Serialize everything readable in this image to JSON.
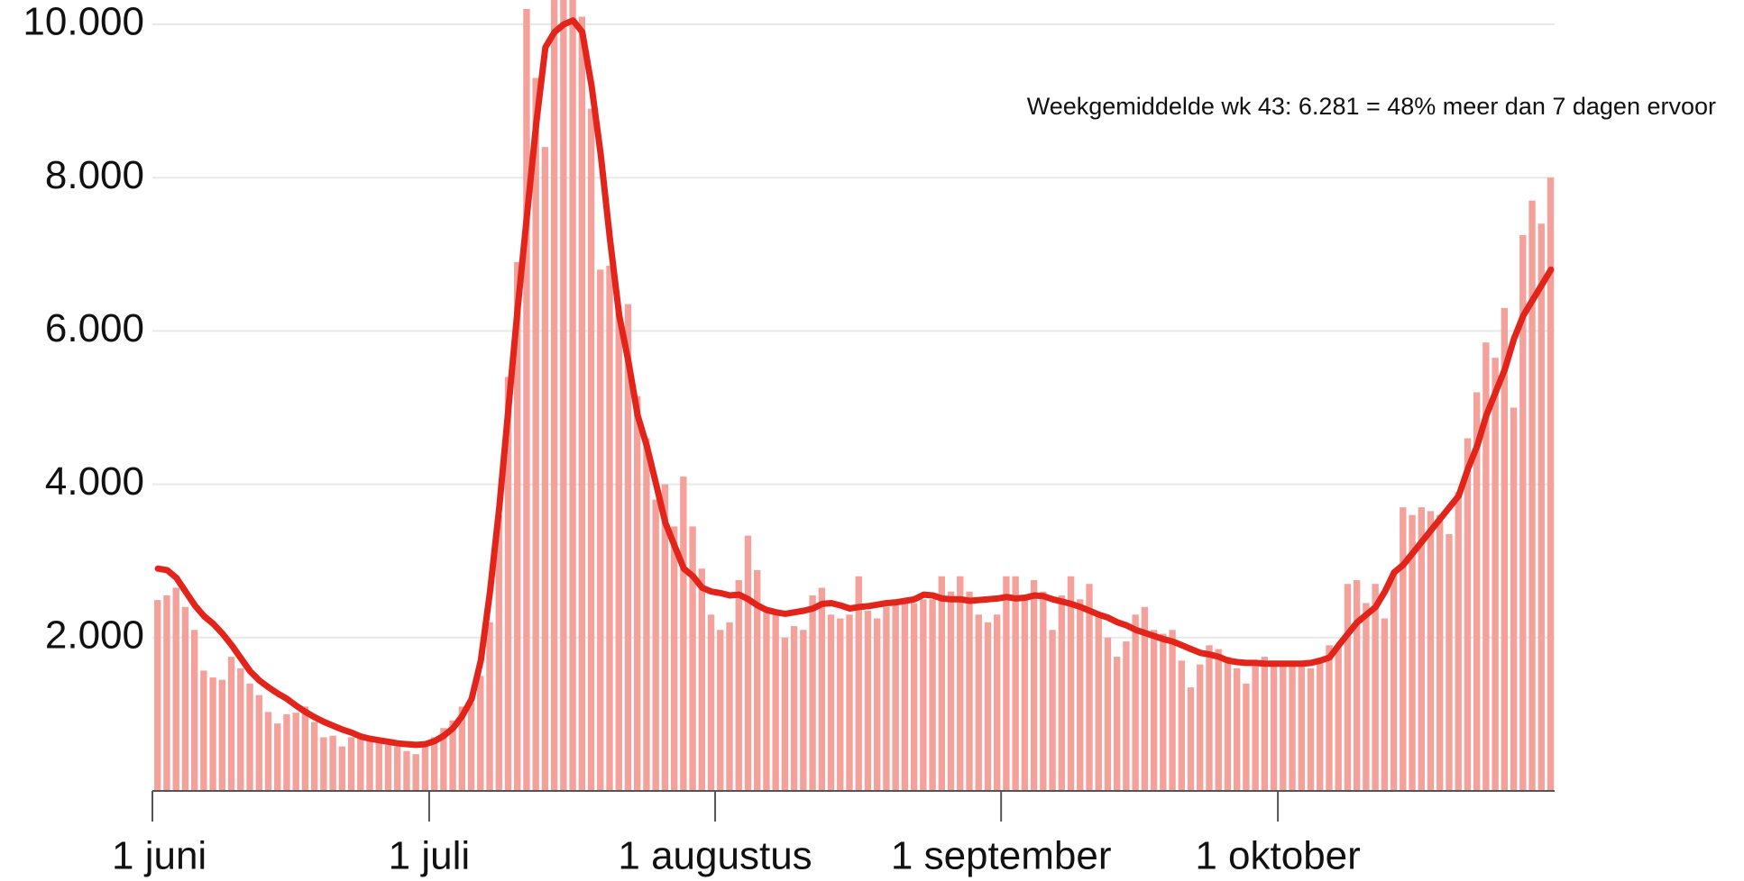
{
  "chart_data": {
    "type": "bar",
    "annotation": "Weekgemiddelde wk 43: 6.281 = 48% meer dan 7 dagen ervoor",
    "categories": [
      "1 juni",
      null,
      null,
      null,
      null,
      null,
      null,
      null,
      null,
      null,
      null,
      null,
      null,
      null,
      null,
      null,
      null,
      null,
      null,
      null,
      null,
      null,
      null,
      null,
      null,
      null,
      null,
      null,
      null,
      null,
      "1 juli",
      null,
      null,
      null,
      null,
      null,
      null,
      null,
      null,
      null,
      null,
      null,
      null,
      null,
      null,
      null,
      null,
      null,
      null,
      null,
      null,
      null,
      null,
      null,
      null,
      null,
      null,
      null,
      null,
      null,
      null,
      "1 augustus",
      null,
      null,
      null,
      null,
      null,
      null,
      null,
      null,
      null,
      null,
      null,
      null,
      null,
      null,
      null,
      null,
      null,
      null,
      null,
      null,
      null,
      null,
      null,
      null,
      null,
      null,
      null,
      null,
      null,
      null,
      "1 september",
      null,
      null,
      null,
      null,
      null,
      null,
      null,
      null,
      null,
      null,
      null,
      null,
      null,
      null,
      null,
      null,
      null,
      null,
      null,
      null,
      null,
      null,
      null,
      null,
      null,
      null,
      null,
      null,
      null,
      "1 oktober",
      null,
      null,
      null,
      null,
      null,
      null,
      null,
      null,
      null,
      null,
      null,
      null,
      null,
      null,
      null,
      null,
      null,
      null,
      null,
      null,
      null,
      null,
      null,
      null,
      null,
      null,
      null,
      null,
      null
    ],
    "series": [
      {
        "type": "bar",
        "color": "#f5a19b",
        "values": [
          2490,
          2550,
          2650,
          2400,
          2100,
          1570,
          1480,
          1450,
          1750,
          1600,
          1400,
          1250,
          1030,
          880,
          1000,
          1020,
          1100,
          900,
          700,
          720,
          580,
          700,
          700,
          700,
          650,
          600,
          580,
          520,
          480,
          600,
          700,
          820,
          920,
          1100,
          1150,
          1500,
          2200,
          3600,
          5400,
          6900,
          10200,
          9300,
          8400,
          10500,
          10800,
          10500,
          10100,
          8900,
          6800,
          6850,
          6250,
          6350,
          5150,
          4600,
          3800,
          4000,
          3450,
          4100,
          3450,
          2900,
          2300,
          2100,
          2200,
          2750,
          3330,
          2880,
          2400,
          2300,
          2000,
          2150,
          2100,
          2550,
          2650,
          2300,
          2250,
          2300,
          2800,
          2350,
          2250,
          2400,
          2500,
          2500,
          2450,
          2500,
          2500,
          2800,
          2600,
          2800,
          2600,
          2300,
          2200,
          2300,
          2800,
          2800,
          2500,
          2750,
          2600,
          2100,
          2550,
          2800,
          2500,
          2700,
          2300,
          2000,
          1750,
          1950,
          2300,
          2400,
          2100,
          2050,
          2100,
          1700,
          1350,
          1650,
          1900,
          1850,
          1750,
          1600,
          1400,
          1650,
          1750,
          1700,
          1700,
          1650,
          1650,
          1600,
          1700,
          1900,
          1900,
          2700,
          2750,
          2450,
          2700,
          2250,
          2850,
          3700,
          3600,
          3700,
          3650,
          3600,
          3350,
          3900,
          4600,
          5200,
          5850,
          5650,
          6300,
          5000,
          7250,
          7700,
          7400,
          8000
        ]
      },
      {
        "type": "line",
        "color": "#e3241b",
        "values": [
          2900,
          2880,
          2780,
          2600,
          2420,
          2280,
          2180,
          2050,
          1900,
          1730,
          1560,
          1440,
          1350,
          1270,
          1200,
          1110,
          1030,
          960,
          900,
          850,
          800,
          760,
          710,
          680,
          660,
          640,
          620,
          610,
          600,
          610,
          650,
          720,
          820,
          980,
          1200,
          1700,
          2600,
          3700,
          5000,
          6300,
          7500,
          8700,
          9700,
          9900,
          10000,
          10050,
          9900,
          9200,
          8300,
          7200,
          6200,
          5600,
          4900,
          4500,
          4000,
          3500,
          3200,
          2900,
          2800,
          2650,
          2600,
          2580,
          2550,
          2560,
          2500,
          2420,
          2360,
          2330,
          2310,
          2330,
          2350,
          2380,
          2440,
          2450,
          2420,
          2380,
          2400,
          2410,
          2430,
          2450,
          2460,
          2480,
          2500,
          2560,
          2550,
          2510,
          2500,
          2500,
          2480,
          2490,
          2500,
          2510,
          2530,
          2510,
          2520,
          2550,
          2540,
          2500,
          2470,
          2440,
          2400,
          2350,
          2300,
          2260,
          2200,
          2160,
          2100,
          2060,
          2020,
          1980,
          1950,
          1900,
          1850,
          1800,
          1780,
          1750,
          1700,
          1680,
          1670,
          1670,
          1660,
          1660,
          1660,
          1660,
          1660,
          1670,
          1700,
          1740,
          1900,
          2050,
          2200,
          2300,
          2400,
          2600,
          2850,
          2950,
          3100,
          3250,
          3400,
          3550,
          3700,
          3850,
          4200,
          4500,
          4900,
          5200,
          5500,
          5900,
          6200,
          6400,
          6600,
          6800
        ]
      }
    ],
    "ylim": [
      0,
      10000
    ],
    "yticks": [
      {
        "value": 2000,
        "label": "2.000"
      },
      {
        "value": 4000,
        "label": "4.000"
      },
      {
        "value": 6000,
        "label": "6.000"
      },
      {
        "value": 8000,
        "label": "8.000"
      },
      {
        "value": 10000,
        "label": "10.000"
      }
    ],
    "grid": true
  }
}
